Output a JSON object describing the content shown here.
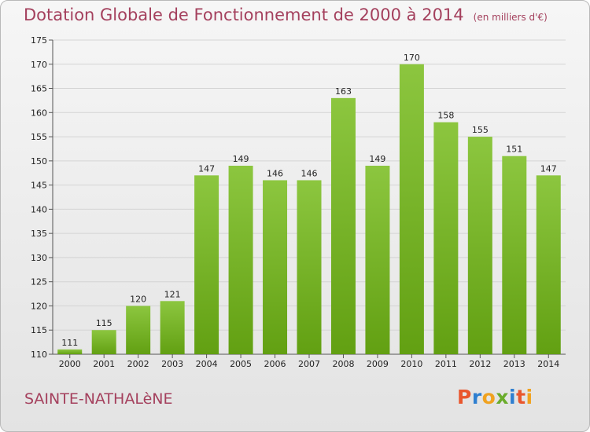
{
  "header": {
    "title": "Dotation Globale de Fonctionnement de 2000 à 2014",
    "unit": "(en milliers d'€)"
  },
  "footer": {
    "commune": "SAINTE-NATHALèNE",
    "logo_letters": [
      {
        "char": "P",
        "color": "#e9562d"
      },
      {
        "char": "r",
        "color": "#2f7fd0"
      },
      {
        "char": "o",
        "color": "#f0a21f"
      },
      {
        "char": "x",
        "color": "#6aac2b"
      },
      {
        "char": "i",
        "color": "#2f7fd0"
      },
      {
        "char": "t",
        "color": "#e9562d"
      },
      {
        "char": "i",
        "color": "#f0a21f"
      }
    ]
  },
  "chart_data": {
    "type": "bar",
    "title": "Dotation Globale de Fonctionnement de 2000 à 2014",
    "subtitle": "(en milliers d'€)",
    "xlabel": "",
    "ylabel": "",
    "categories": [
      "2000",
      "2001",
      "2002",
      "2003",
      "2004",
      "2005",
      "2006",
      "2007",
      "2008",
      "2009",
      "2010",
      "2011",
      "2012",
      "2013",
      "2014"
    ],
    "values": [
      111,
      115,
      120,
      121,
      147,
      149,
      146,
      146,
      163,
      149,
      170,
      158,
      155,
      151,
      147
    ],
    "ylim": [
      110,
      175
    ],
    "yticks": [
      110,
      115,
      120,
      125,
      130,
      135,
      140,
      145,
      150,
      155,
      160,
      165,
      170,
      175
    ],
    "grid": true,
    "data_labels": true,
    "bar_color": "#8cc63f",
    "bar_color_dark": "#62a012"
  }
}
